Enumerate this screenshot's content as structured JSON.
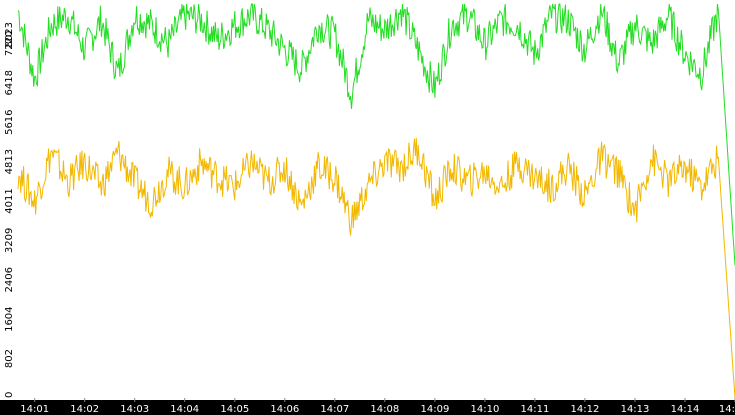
{
  "chart_data": {
    "type": "line",
    "ylim": [
      0,
      8023
    ],
    "y_ticks": [
      "0",
      "802",
      "1604",
      "2406",
      "3209",
      "4011",
      "4813",
      "5616",
      "6418",
      "7220",
      "8023"
    ],
    "x_ticks": [
      "14:01",
      "14:02",
      "14:03",
      "14:04",
      "14:05",
      "14:06",
      "14:07",
      "14:08",
      "14:09",
      "14:10",
      "14:11",
      "14:12",
      "14:13",
      "14:14",
      "14:"
    ],
    "x_range": [
      "14:00:40",
      "14:15:00"
    ],
    "grid": false,
    "legend": "none",
    "series": [
      {
        "color": "#22dd22",
        "x": [
          "14:00:40",
          "14:01:00",
          "14:01:20",
          "14:01:40",
          "14:02:00",
          "14:02:20",
          "14:02:40",
          "14:03:00",
          "14:03:20",
          "14:03:40",
          "14:04:00",
          "14:04:20",
          "14:04:40",
          "14:05:00",
          "14:05:20",
          "14:05:40",
          "14:06:00",
          "14:06:20",
          "14:06:40",
          "14:07:00",
          "14:07:20",
          "14:07:40",
          "14:08:00",
          "14:08:20",
          "14:08:40",
          "14:09:00",
          "14:09:20",
          "14:09:40",
          "14:10:00",
          "14:10:20",
          "14:10:40",
          "14:11:00",
          "14:11:20",
          "14:11:40",
          "14:12:00",
          "14:12:20",
          "14:12:40",
          "14:13:00",
          "14:13:20",
          "14:13:40",
          "14:14:00",
          "14:14:20",
          "14:14:40",
          "14:15:00"
        ],
        "values": [
          7900,
          6500,
          7600,
          7800,
          7100,
          7700,
          6600,
          7800,
          7600,
          7200,
          7800,
          7700,
          7300,
          7600,
          7800,
          7500,
          7100,
          6700,
          7600,
          7400,
          6200,
          7700,
          7500,
          7900,
          7100,
          6300,
          7600,
          7800,
          7200,
          7700,
          7600,
          7000,
          7800,
          7700,
          7100,
          7900,
          6800,
          7600,
          7200,
          7800,
          7000,
          6600,
          7900,
          2700
        ]
      },
      {
        "color": "#f2b800",
        "x": [
          "14:00:40",
          "14:01:00",
          "14:01:20",
          "14:01:40",
          "14:02:00",
          "14:02:20",
          "14:02:40",
          "14:03:00",
          "14:03:20",
          "14:03:40",
          "14:04:00",
          "14:04:20",
          "14:04:40",
          "14:05:00",
          "14:05:20",
          "14:05:40",
          "14:06:00",
          "14:06:20",
          "14:06:40",
          "14:07:00",
          "14:07:20",
          "14:07:40",
          "14:08:00",
          "14:08:20",
          "14:08:40",
          "14:09:00",
          "14:09:20",
          "14:09:40",
          "14:10:00",
          "14:10:20",
          "14:10:40",
          "14:11:00",
          "14:11:20",
          "14:11:40",
          "14:12:00",
          "14:12:20",
          "14:12:40",
          "14:13:00",
          "14:13:20",
          "14:13:40",
          "14:14:00",
          "14:14:20",
          "14:14:40",
          "14:15:00"
        ],
        "values": [
          4600,
          4000,
          5000,
          4400,
          4800,
          4300,
          5000,
          4400,
          4000,
          4600,
          4300,
          4800,
          4500,
          4300,
          4800,
          4400,
          4700,
          3900,
          4700,
          4500,
          3600,
          4300,
          4800,
          4700,
          5100,
          4000,
          4700,
          4400,
          4600,
          4300,
          4800,
          4500,
          4300,
          4700,
          4100,
          4900,
          4600,
          3800,
          4900,
          4400,
          4700,
          4300,
          4900,
          0
        ]
      }
    ]
  }
}
